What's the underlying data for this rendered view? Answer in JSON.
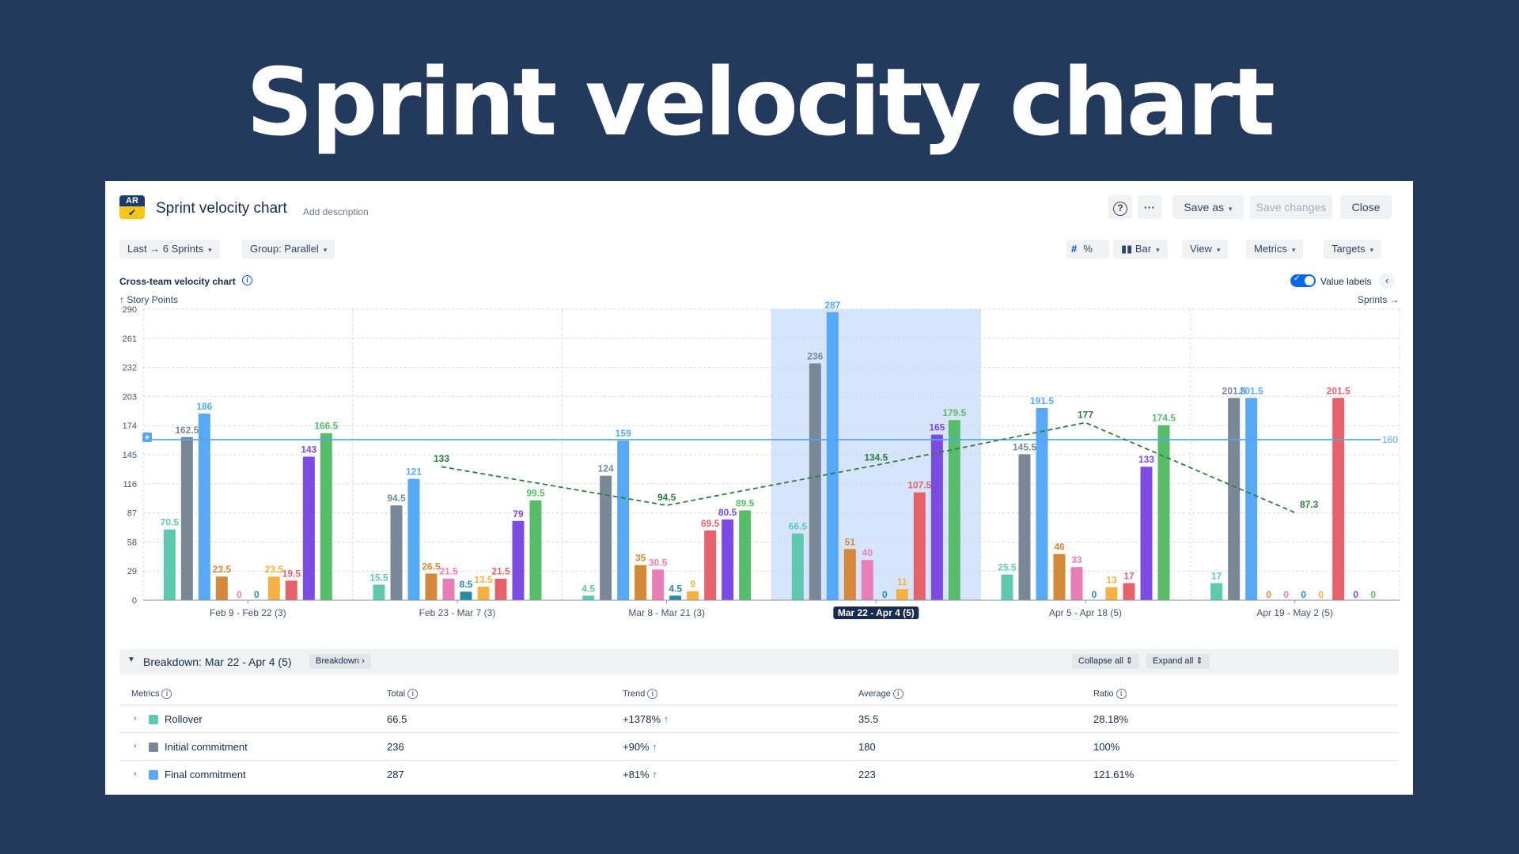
{
  "hero_title": "Sprint velocity chart",
  "header": {
    "logo_text": "AR",
    "title": "Sprint velocity chart",
    "add_description": "Add description",
    "help": "?",
    "more": "···",
    "save_as": "Save as",
    "save_changes": "Save changes",
    "close": "Close"
  },
  "toolbar": {
    "range": "Last → 6 Sprints",
    "group": "Group: Parallel",
    "hash": "#",
    "percent": "%",
    "chart_type": "Bar",
    "view": "View",
    "metrics": "Metrics",
    "targets": "Targets"
  },
  "chart_header": {
    "title": "Cross-team velocity chart",
    "y_unit": "↑ Story Points",
    "x_unit": "Sprints →",
    "value_labels": "Value labels"
  },
  "colors": {
    "rollover": "#5fc9b0",
    "initial": "#7a8797",
    "final": "#57a9f5",
    "orange": "#d4883a",
    "pink": "#e77fb6",
    "teal_dark": "#2a8aa6",
    "yellow": "#f3b243",
    "red": "#e6626a",
    "purple": "#7b4be2",
    "green": "#58bd6a",
    "target_line": "#5aa4f0",
    "trend_line": "#2e7d3f",
    "highlight": "#cfe0fb"
  },
  "chart_data": {
    "type": "bar",
    "categories": [
      "Feb 9 - Feb 22 (3)",
      "Feb 23 - Mar 7 (3)",
      "Mar 8 - Mar 21 (3)",
      "Mar 22 - Apr 4 (5)",
      "Apr 5 - Apr 18 (5)",
      "Apr 19 - May 2 (5)"
    ],
    "highlighted_category": 3,
    "yticks": [
      0,
      29,
      58,
      87,
      116,
      145,
      174,
      203,
      232,
      261,
      290
    ],
    "ylim": [
      0,
      290
    ],
    "target": {
      "value": 160,
      "label": "160"
    },
    "trend": {
      "values": [
        133,
        94.5,
        134.5,
        177,
        87.3
      ],
      "labels": [
        "133",
        "94.5",
        "134.5",
        "177",
        "87.3"
      ]
    },
    "groups": [
      {
        "bars": [
          {
            "v": 70.5,
            "label": "70.5",
            "c": "rollover"
          },
          {
            "v": 162.5,
            "label": "162.5",
            "c": "initial"
          },
          {
            "v": 186,
            "label": "186",
            "c": "final"
          },
          {
            "v": 23.5,
            "label": "23.5",
            "c": "orange"
          },
          {
            "v": 0,
            "label": "0",
            "c": "pink"
          },
          {
            "v": 0,
            "label": "0",
            "c": "teal_dark"
          },
          {
            "v": 23.5,
            "label": "23.5",
            "c": "yellow"
          },
          {
            "v": 19.5,
            "label": "19.5",
            "c": "red"
          },
          {
            "v": 143,
            "label": "143",
            "c": "purple"
          },
          {
            "v": 166.5,
            "label": "166.5",
            "c": "green"
          }
        ]
      },
      {
        "bars": [
          {
            "v": 15.5,
            "label": "15.5",
            "c": "rollover"
          },
          {
            "v": 94.5,
            "label": "94.5",
            "c": "initial"
          },
          {
            "v": 121,
            "label": "121",
            "c": "final"
          },
          {
            "v": 26.5,
            "label": "26.5",
            "c": "orange"
          },
          {
            "v": 21.5,
            "label": "21.5",
            "c": "pink"
          },
          {
            "v": 8.5,
            "label": "8.5",
            "c": "teal_dark"
          },
          {
            "v": 13.5,
            "label": "13.5",
            "c": "yellow"
          },
          {
            "v": 21.5,
            "label": "21.5",
            "c": "red"
          },
          {
            "v": 79,
            "label": "79",
            "c": "purple"
          },
          {
            "v": 99.5,
            "label": "99.5",
            "c": "green"
          }
        ]
      },
      {
        "bars": [
          {
            "v": 4.5,
            "label": "4.5",
            "c": "rollover"
          },
          {
            "v": 124,
            "label": "124",
            "c": "initial"
          },
          {
            "v": 159,
            "label": "159",
            "c": "final"
          },
          {
            "v": 35,
            "label": "35",
            "c": "orange"
          },
          {
            "v": 30.5,
            "label": "30.5",
            "c": "pink"
          },
          {
            "v": 4.5,
            "label": "4.5",
            "c": "teal_dark"
          },
          {
            "v": 9,
            "label": "9",
            "c": "yellow"
          },
          {
            "v": 69.5,
            "label": "69.5",
            "c": "red"
          },
          {
            "v": 80.5,
            "label": "80.5",
            "c": "purple"
          },
          {
            "v": 89.5,
            "label": "89.5",
            "c": "green"
          }
        ]
      },
      {
        "bars": [
          {
            "v": 66.5,
            "label": "66.5",
            "c": "rollover"
          },
          {
            "v": 236,
            "label": "236",
            "c": "initial"
          },
          {
            "v": 287,
            "label": "287",
            "c": "final"
          },
          {
            "v": 51,
            "label": "51",
            "c": "orange"
          },
          {
            "v": 40,
            "label": "40",
            "c": "pink"
          },
          {
            "v": 0,
            "label": "0",
            "c": "teal_dark"
          },
          {
            "v": 11,
            "label": "11",
            "c": "yellow"
          },
          {
            "v": 107.5,
            "label": "107.5",
            "c": "red"
          },
          {
            "v": 165,
            "label": "165",
            "c": "purple"
          },
          {
            "v": 179.5,
            "label": "179.5",
            "c": "green"
          }
        ]
      },
      {
        "bars": [
          {
            "v": 25.5,
            "label": "25.5",
            "c": "rollover"
          },
          {
            "v": 145.5,
            "label": "145.5",
            "c": "initial"
          },
          {
            "v": 191.5,
            "label": "191.5",
            "c": "final"
          },
          {
            "v": 46,
            "label": "46",
            "c": "orange"
          },
          {
            "v": 33,
            "label": "33",
            "c": "pink"
          },
          {
            "v": 0,
            "label": "0",
            "c": "teal_dark"
          },
          {
            "v": 13,
            "label": "13",
            "c": "yellow"
          },
          {
            "v": 17,
            "label": "17",
            "c": "red"
          },
          {
            "v": 133,
            "label": "133",
            "c": "purple"
          },
          {
            "v": 174.5,
            "label": "174.5",
            "c": "green"
          }
        ]
      },
      {
        "bars": [
          {
            "v": 17,
            "label": "17",
            "c": "rollover"
          },
          {
            "v": 201.5,
            "label": "201.5",
            "c": "initial"
          },
          {
            "v": 201.5,
            "label": "201.5",
            "c": "final"
          },
          {
            "v": 0,
            "label": "0",
            "c": "orange"
          },
          {
            "v": 0,
            "label": "0",
            "c": "pink"
          },
          {
            "v": 0,
            "label": "0",
            "c": "teal_dark"
          },
          {
            "v": 0,
            "label": "0",
            "c": "yellow"
          },
          {
            "v": 201.5,
            "label": "201.5",
            "c": "red"
          },
          {
            "v": 0,
            "label": "0",
            "c": "purple"
          },
          {
            "v": 0,
            "label": "0",
            "c": "green"
          }
        ]
      }
    ]
  },
  "breakdown": {
    "title": "Breakdown: Mar 22 - Apr 4 (5)",
    "breakdown_button": "Breakdown",
    "collapse_all": "Collapse all",
    "expand_all": "Expand all",
    "columns": [
      "Metrics",
      "Total",
      "Trend",
      "Average",
      "Ratio"
    ],
    "rows": [
      {
        "name": "Rollover",
        "color": "#5fc9b0",
        "total": "66.5",
        "trend": "+1378%",
        "average": "35.5",
        "ratio": "28.18%"
      },
      {
        "name": "Initial commitment",
        "color": "#7a8797",
        "total": "236",
        "trend": "+90%",
        "average": "180",
        "ratio": "100%"
      },
      {
        "name": "Final commitment",
        "color": "#57a9f5",
        "total": "287",
        "trend": "+81%",
        "average": "223",
        "ratio": "121.61%"
      }
    ]
  }
}
